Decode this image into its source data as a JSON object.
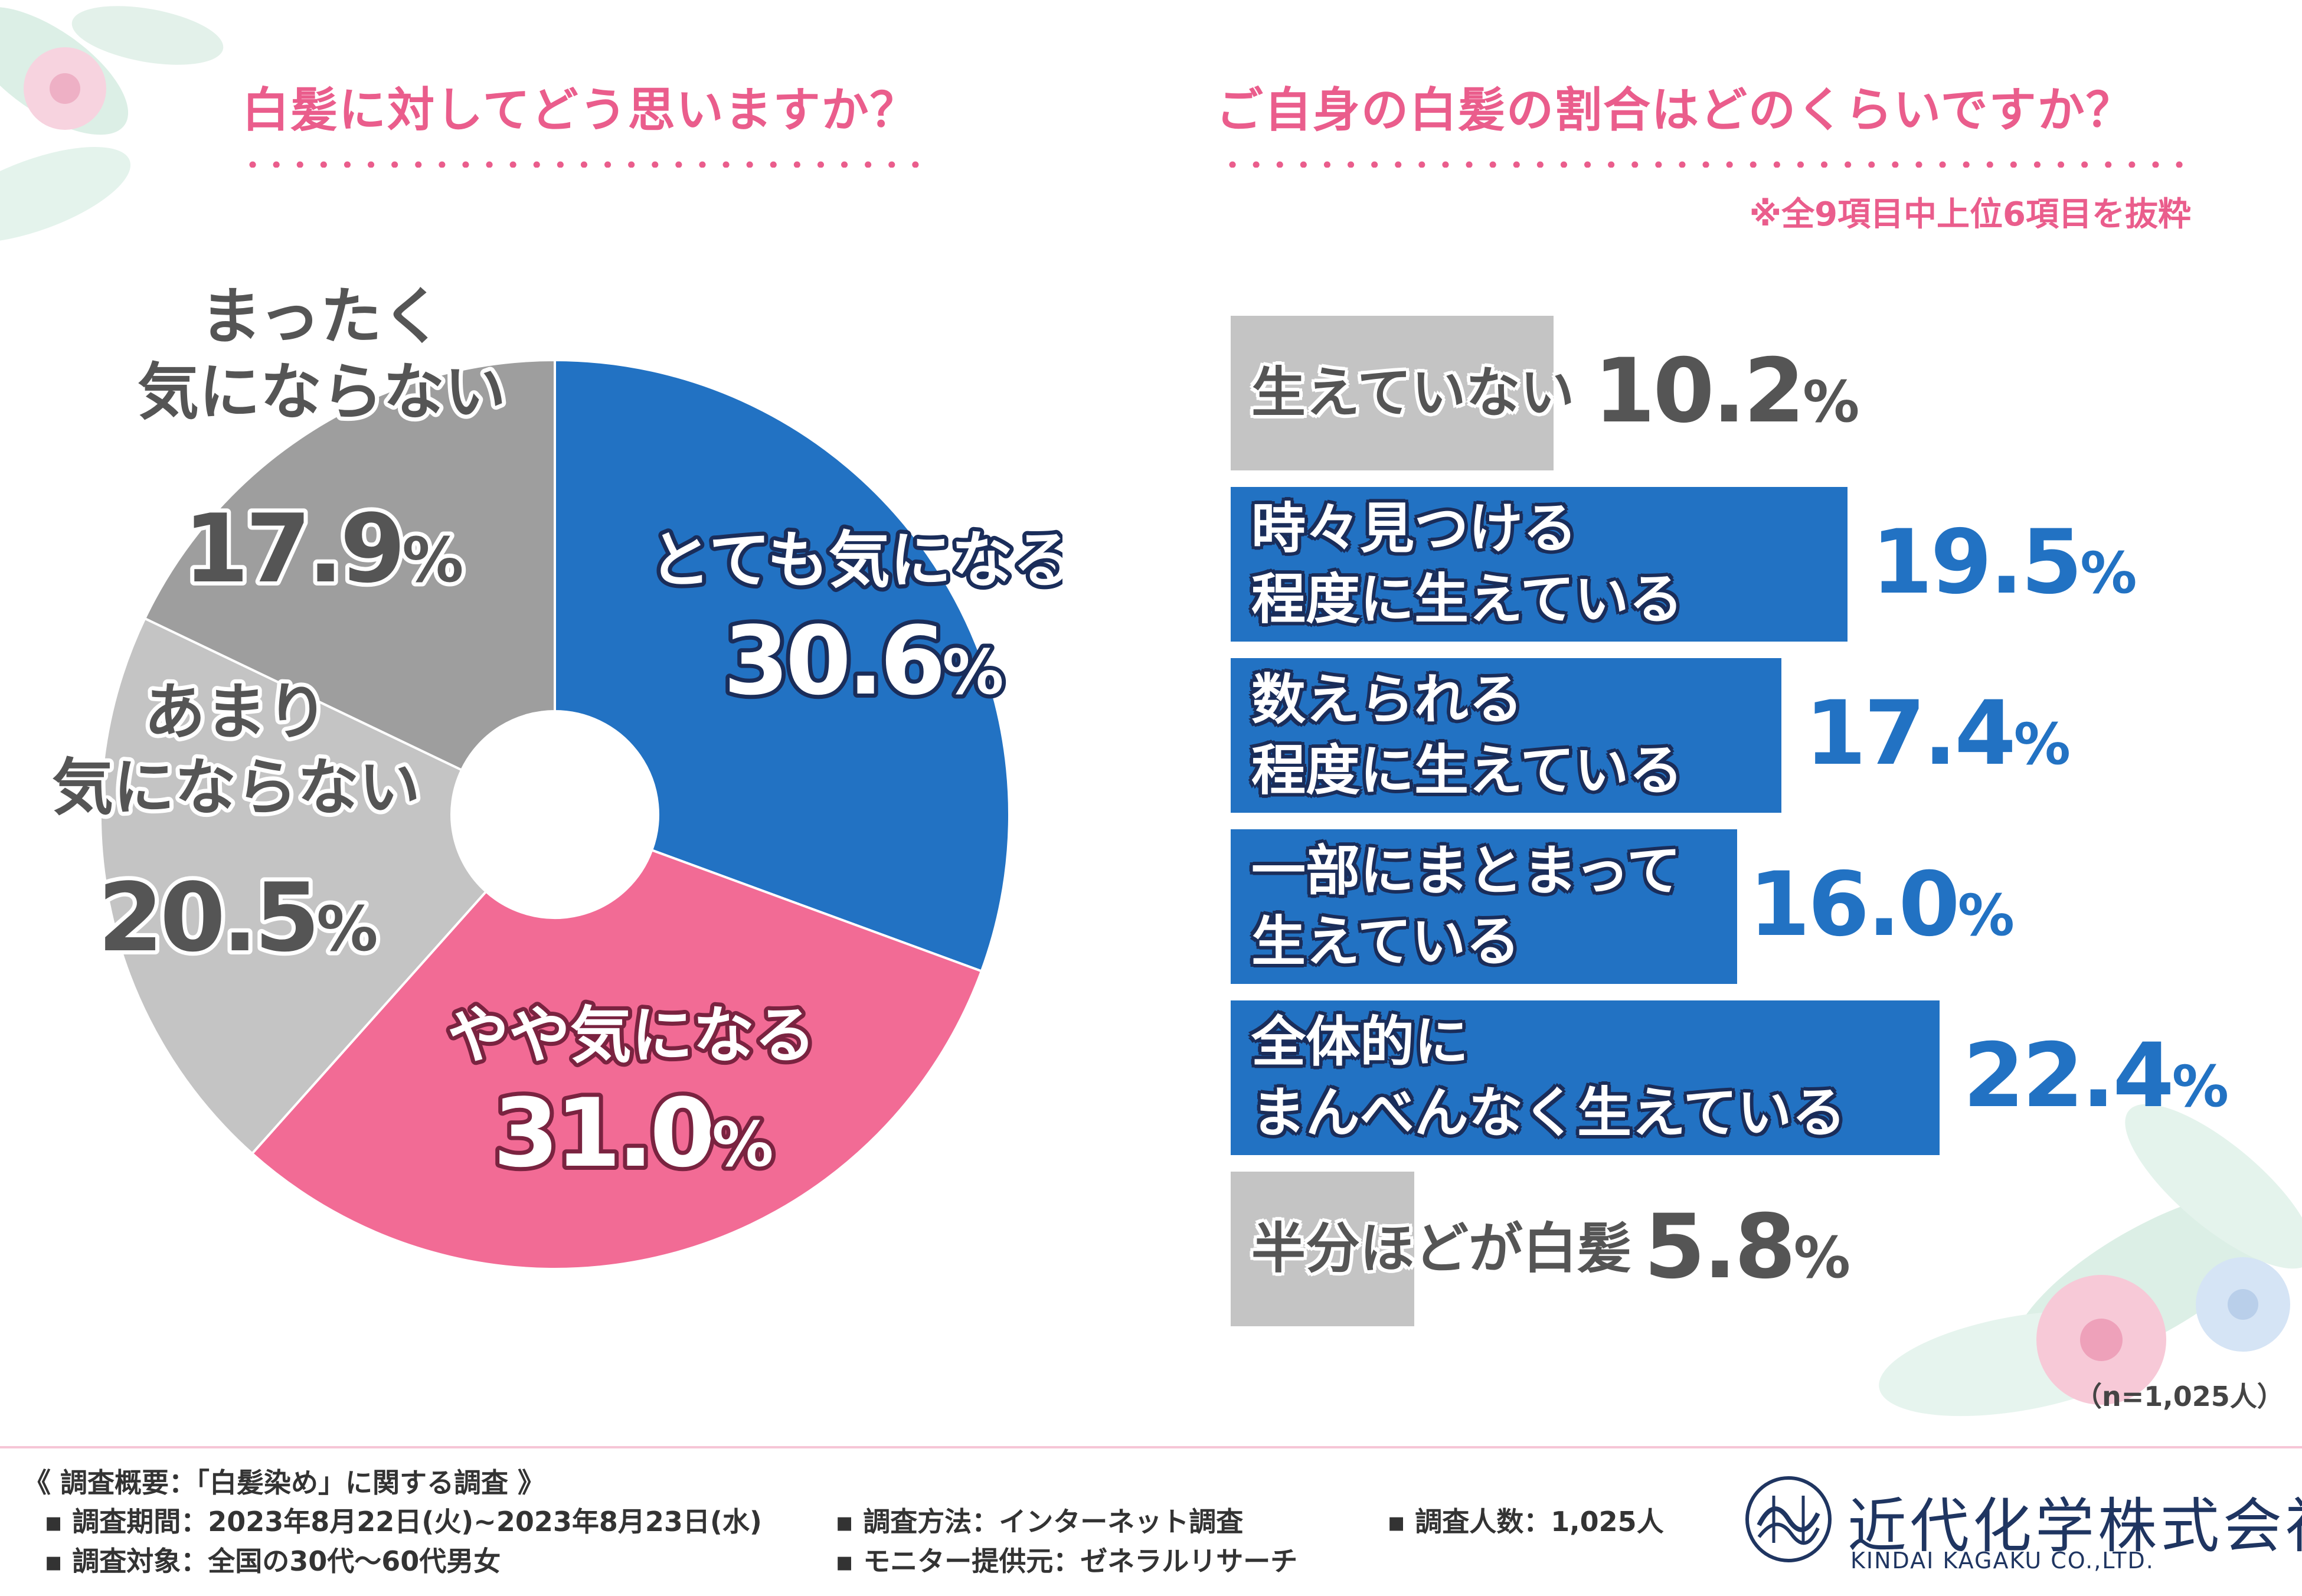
{
  "left_chart": {
    "title": "白髪に対してどう思いますか？"
  },
  "right_chart": {
    "title": "ご自身の白髪の割合はどのくらいですか？",
    "note": "※全9項目中上位6項目を抜粋"
  },
  "sample_note": "（n=1,025人）",
  "footer": {
    "heading": "《 調査概要：「白髪染め」に関する調査 》",
    "items": [
      "▪ 調査期間：2023年8月22日(火)~2023年8月23日(水)",
      "▪ 調査方法：インターネット調査",
      "▪ 調査人数：1,025人",
      "▪ 調査対象：全国の30代～60代男女",
      "▪ モニター提供元：ゼネラルリサーチ"
    ],
    "company_name": "近代化学株式会社",
    "company_name_en": "KINDAI KAGAKU CO.,LTD."
  },
  "colors": {
    "blue": "#2272c3",
    "pink": "#f26b95",
    "lightgray": "#c4c4c4",
    "darkgray": "#9e9e9e",
    "title_pink": "#ea5d8c"
  },
  "chart_data": [
    {
      "type": "pie",
      "title": "白髪に対してどう思いますか？",
      "slices": [
        {
          "label": "とても気になる",
          "value": 30.6,
          "value_text": "30.6",
          "unit": "%",
          "color": "#2272c3"
        },
        {
          "label": "やや気になる",
          "value": 31.0,
          "value_text": "31.0",
          "unit": "%",
          "color": "#f26b95"
        },
        {
          "label": "あまり\n気にならない",
          "value": 20.5,
          "value_text": "20.5",
          "unit": "%",
          "color": "#c4c4c4"
        },
        {
          "label": "まったく\n気にならない",
          "value": 17.9,
          "value_text": "17.9",
          "unit": "%",
          "color": "#9e9e9e"
        }
      ]
    },
    {
      "type": "bar",
      "orientation": "horizontal",
      "title": "ご自身の白髪の割合はどのくらいですか？",
      "categories": [
        "生えていない",
        "時々見つける\n程度に生えている",
        "数えられる\n程度に生えている",
        "一部にまとまって\n生えている",
        "全体的に\nまんべんなく生えている",
        "半分ほどが白髪"
      ],
      "values": [
        10.2,
        19.5,
        17.4,
        16.0,
        22.4,
        5.8
      ],
      "value_texts": [
        "10.2",
        "19.5",
        "17.4",
        "16.0",
        "22.4",
        "5.8"
      ],
      "unit": "%",
      "colors": [
        "#c4c4c4",
        "#2272c3",
        "#2272c3",
        "#2272c3",
        "#2272c3",
        "#c4c4c4"
      ]
    }
  ]
}
